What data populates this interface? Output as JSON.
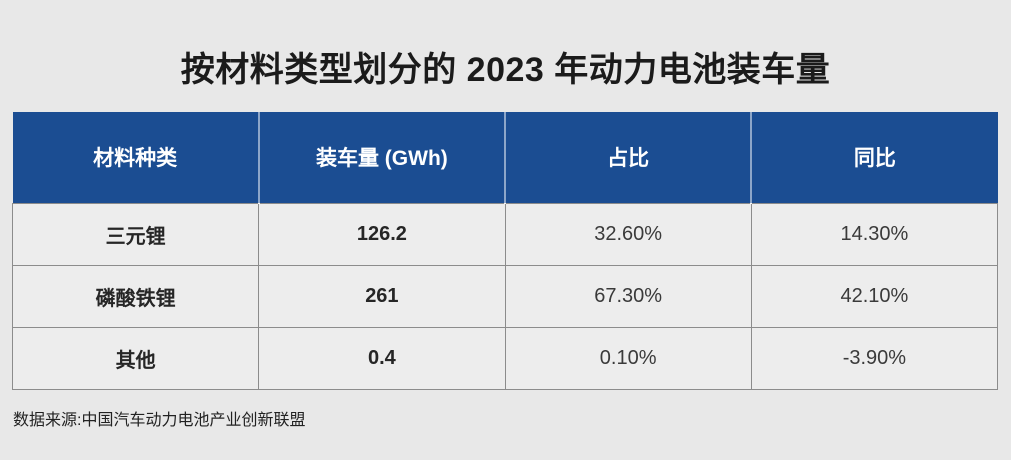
{
  "title": "按材料类型划分的 2023 年动力电池装车量",
  "colors": {
    "page_bg": "#e8e8e8",
    "header_bg": "#1b4d92",
    "header_text": "#ffffff",
    "cell_bg": "#ededed",
    "border": "#8c8c8c",
    "body_text": "#3a3a3a"
  },
  "table": {
    "columns": [
      "材料种类",
      "装车量 (GWh)",
      "占比",
      "同比"
    ],
    "rows": [
      [
        "三元锂",
        "126.2",
        "32.60%",
        "14.30%"
      ],
      [
        "磷酸铁锂",
        "261",
        "67.30%",
        "42.10%"
      ],
      [
        "其他",
        "0.4",
        "0.10%",
        "-3.90%"
      ]
    ]
  },
  "source": "数据来源:中国汽车动力电池产业创新联盟",
  "chart_data": {
    "type": "table",
    "title": "按材料类型划分的 2023 年动力电池装车量",
    "columns": [
      "材料种类",
      "装车量 (GWh)",
      "占比",
      "同比"
    ],
    "rows": [
      {
        "material": "三元锂",
        "installed_gwh": 126.2,
        "share_pct": 32.6,
        "yoy_pct": 14.3
      },
      {
        "material": "磷酸铁锂",
        "installed_gwh": 261,
        "share_pct": 67.3,
        "yoy_pct": 42.1
      },
      {
        "material": "其他",
        "installed_gwh": 0.4,
        "share_pct": 0.1,
        "yoy_pct": -3.9
      }
    ],
    "source": "数据来源:中国汽车动力电池产业创新联盟"
  }
}
